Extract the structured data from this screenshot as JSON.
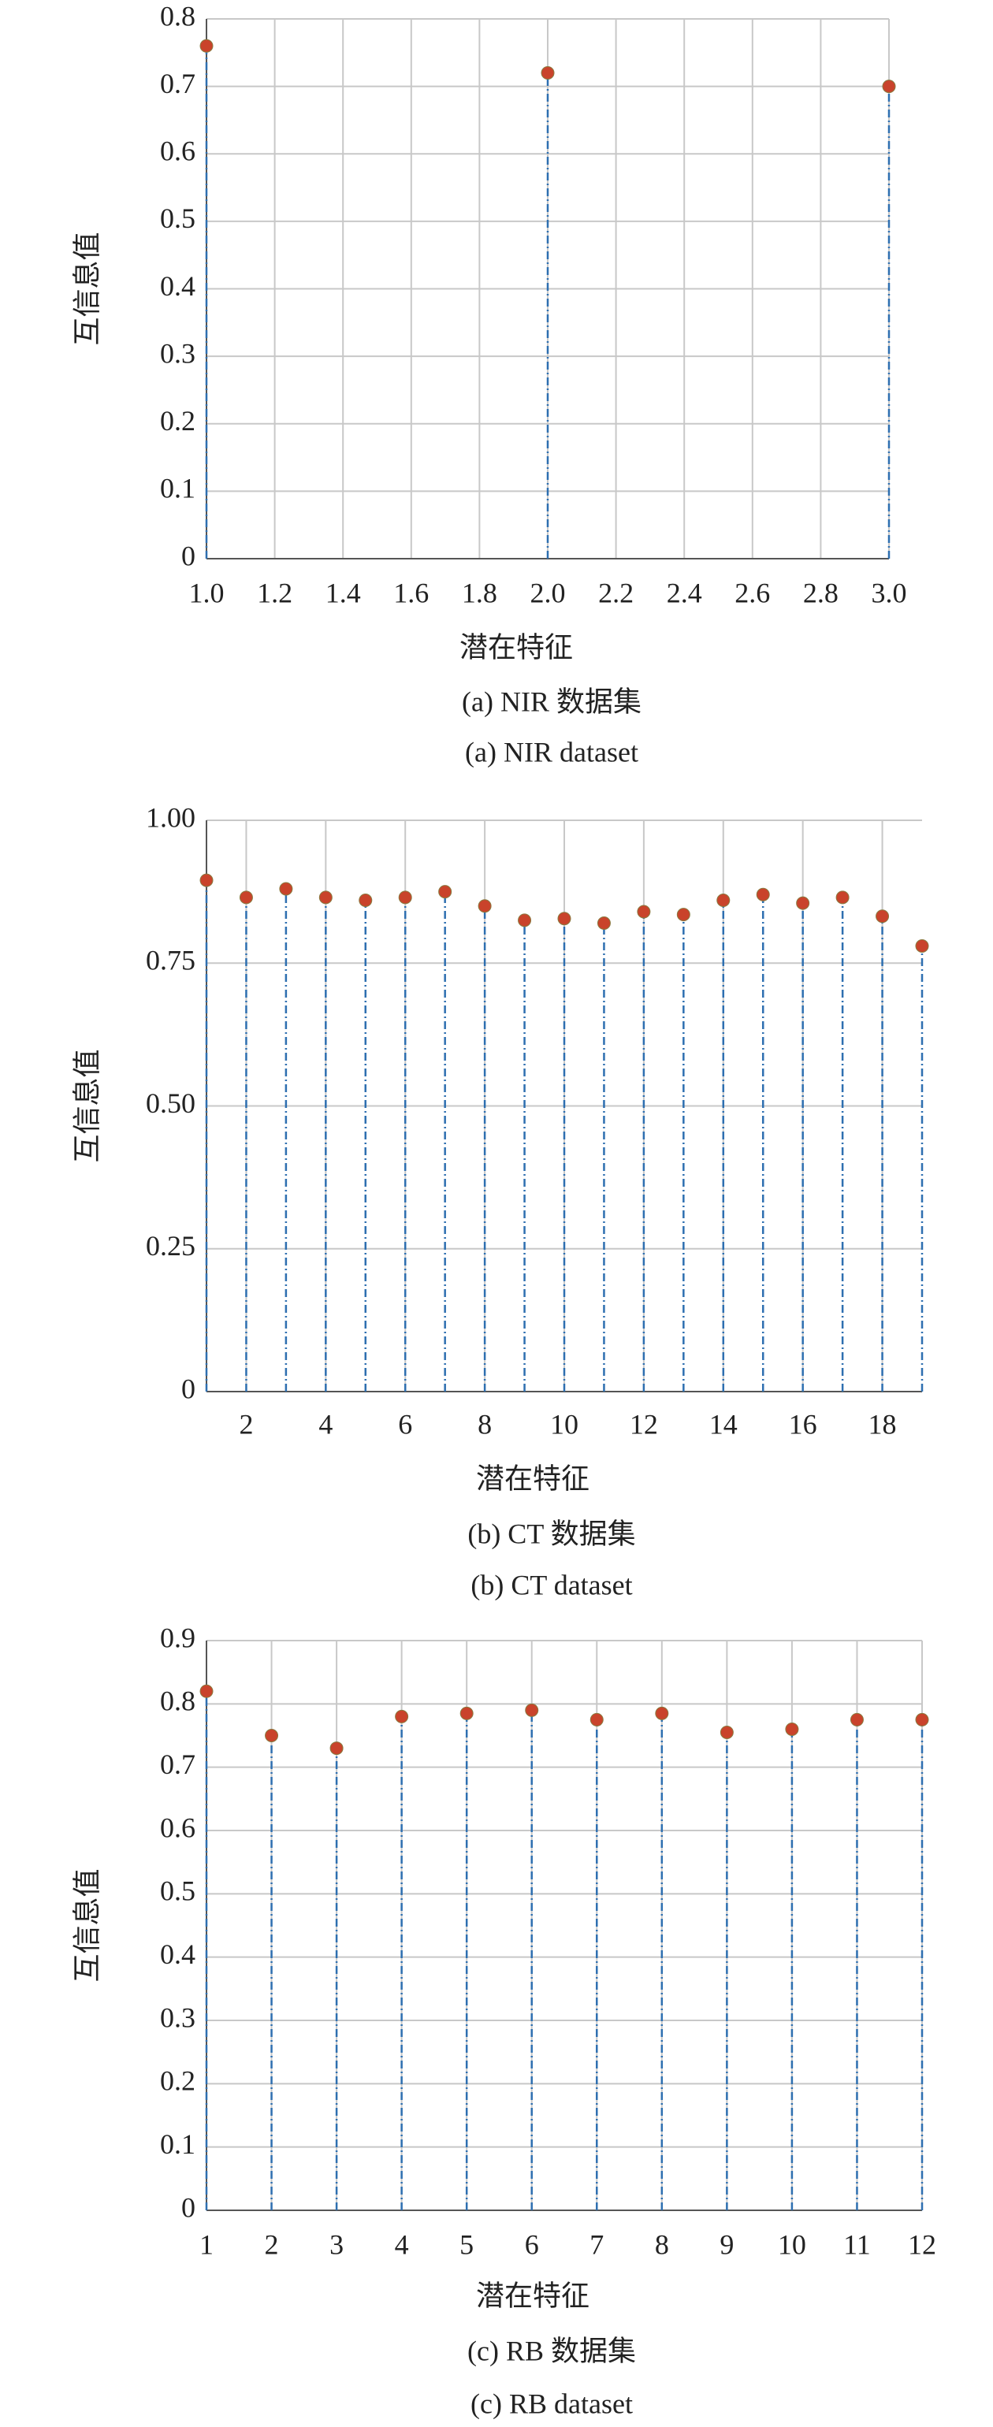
{
  "chart_data": [
    {
      "type": "stem",
      "xlabel": "潜在特征",
      "ylabel": "互信息值",
      "captions": [
        "(a) NIR 数据集",
        "(a) NIR dataset"
      ],
      "x": [
        1,
        2,
        3
      ],
      "values": [
        0.76,
        0.72,
        0.7
      ],
      "xlim": [
        1,
        3
      ],
      "xticks": [
        {
          "value": 1,
          "label": "1.0"
        },
        1.2,
        1.4,
        1.6,
        1.8,
        {
          "value": 2,
          "label": "2.0"
        },
        2.2,
        2.4,
        2.6,
        2.8,
        {
          "value": 3,
          "label": "3.0"
        }
      ],
      "ylim": [
        0,
        0.8
      ],
      "yticks": [
        0,
        0.1,
        0.2,
        0.3,
        0.4,
        0.5,
        0.6,
        0.7,
        0.8
      ],
      "color": "#c9432b",
      "stem_color": "#2e6fb0",
      "grid": true
    },
    {
      "type": "stem",
      "xlabel": "潜在特征",
      "ylabel": "互信息值",
      "captions": [
        "(b) CT 数据集",
        "(b) CT dataset"
      ],
      "x": [
        1,
        2,
        3,
        4,
        5,
        6,
        7,
        8,
        9,
        10,
        11,
        12,
        13,
        14,
        15,
        16,
        17,
        18,
        19
      ],
      "values": [
        0.895,
        0.865,
        0.88,
        0.865,
        0.86,
        0.865,
        0.875,
        0.85,
        0.825,
        0.828,
        0.82,
        0.84,
        0.835,
        0.86,
        0.87,
        0.855,
        0.865,
        0.832,
        0.78
      ],
      "xlim": [
        1,
        19
      ],
      "xticks": [
        2,
        4,
        6,
        8,
        10,
        12,
        14,
        16,
        18
      ],
      "ylim": [
        0,
        1
      ],
      "yticks": [
        0,
        0.25,
        {
          "value": 0.5,
          "label": "0.50"
        },
        0.75,
        {
          "value": 1,
          "label": "1.00"
        }
      ],
      "color": "#c9432b",
      "stem_color": "#2e6fb0",
      "grid": true
    },
    {
      "type": "stem",
      "xlabel": "潜在特征",
      "ylabel": "互信息值",
      "captions": [
        "(c) RB 数据集",
        "(c) RB dataset"
      ],
      "x": [
        1,
        2,
        3,
        4,
        5,
        6,
        7,
        8,
        9,
        10,
        11,
        12
      ],
      "values": [
        0.82,
        0.75,
        0.73,
        0.78,
        0.785,
        0.79,
        0.775,
        0.785,
        0.755,
        0.76,
        0.775,
        0.775
      ],
      "xlim": [
        1,
        12
      ],
      "xticks": [
        1,
        2,
        3,
        4,
        5,
        6,
        7,
        8,
        9,
        10,
        11,
        12
      ],
      "ylim": [
        0,
        0.9
      ],
      "yticks": [
        0,
        0.1,
        0.2,
        0.3,
        0.4,
        0.5,
        0.6,
        0.7,
        0.8,
        0.9
      ],
      "color": "#c9432b",
      "stem_color": "#2e6fb0",
      "grid": true
    }
  ]
}
